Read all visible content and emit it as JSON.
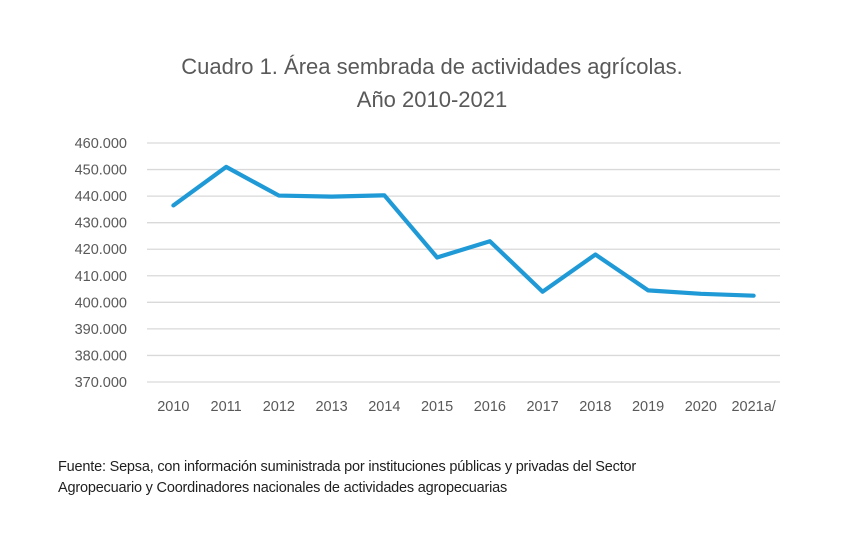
{
  "chart_data": {
    "type": "line",
    "title": "Cuadro 1. Área sembrada de actividades agrícolas.",
    "subtitle": "Año 2010-2021",
    "xlabel": "",
    "ylabel": "",
    "categories": [
      "2010",
      "2011",
      "2012",
      "2013",
      "2014",
      "2015",
      "2016",
      "2017",
      "2018",
      "2019",
      "2020",
      "2021a/"
    ],
    "series": [
      {
        "name": "Área sembrada",
        "color": "#1f9ad6",
        "values": [
          436500,
          451000,
          440200,
          439800,
          440300,
          416900,
          423000,
          404000,
          418000,
          404500,
          403200,
          402500
        ]
      }
    ],
    "ylim": [
      370000,
      460000
    ],
    "yticks": [
      460000,
      450000,
      440000,
      430000,
      420000,
      410000,
      400000,
      390000,
      380000,
      370000
    ],
    "ytick_labels": [
      "460.000",
      "450.000",
      "440.000",
      "430.000",
      "420.000",
      "410.000",
      "400.000",
      "390.000",
      "380.000",
      "370.000"
    ],
    "grid": true,
    "legend": "none"
  },
  "footnote": {
    "line1": "Fuente: Sepsa, con información suministrada por instituciones públicas y privadas del Sector",
    "line2": "Agropecuario y Coordinadores nacionales de actividades agropecuarias"
  },
  "colors": {
    "line": "#1f9ad6",
    "grid": "#d9d9d9",
    "text": "#595959"
  }
}
